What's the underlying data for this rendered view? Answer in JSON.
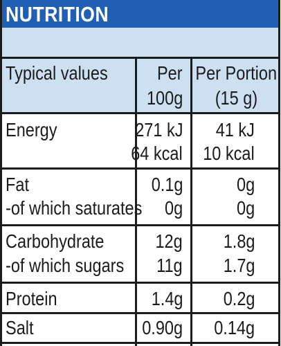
{
  "header": {
    "title": "NUTRITION"
  },
  "columns": {
    "name": "Typical values",
    "per100_line1": "Per",
    "per100_line2": "100g",
    "portion_line1": "Per Portion",
    "portion_line2": "(15 g)"
  },
  "rows": [
    {
      "name": "Energy",
      "per100": "271 kJ",
      "portion": "41 kJ"
    },
    {
      "name": "",
      "per100": "64 kcal",
      "portion": "10 kcal"
    },
    {
      "name": "Fat",
      "per100": "0.1g",
      "portion": "0g"
    },
    {
      "name": "-of which saturates",
      "per100": "0g",
      "portion": "0g"
    },
    {
      "name": "Carbohydrate",
      "per100": "12g",
      "portion": "1.8g"
    },
    {
      "name": "-of which sugars",
      "per100": "11g",
      "portion": "1.7g"
    },
    {
      "name": "Protein",
      "per100": "1.4g",
      "portion": "0.2g"
    },
    {
      "name": "Salt",
      "per100": "0.90g",
      "portion": "0.14g"
    }
  ],
  "colors": {
    "header_bg": "#1f5fb4",
    "header_text": "#ffffff",
    "band_bg": "#cde0f2",
    "grid": "#1b1b1b"
  }
}
